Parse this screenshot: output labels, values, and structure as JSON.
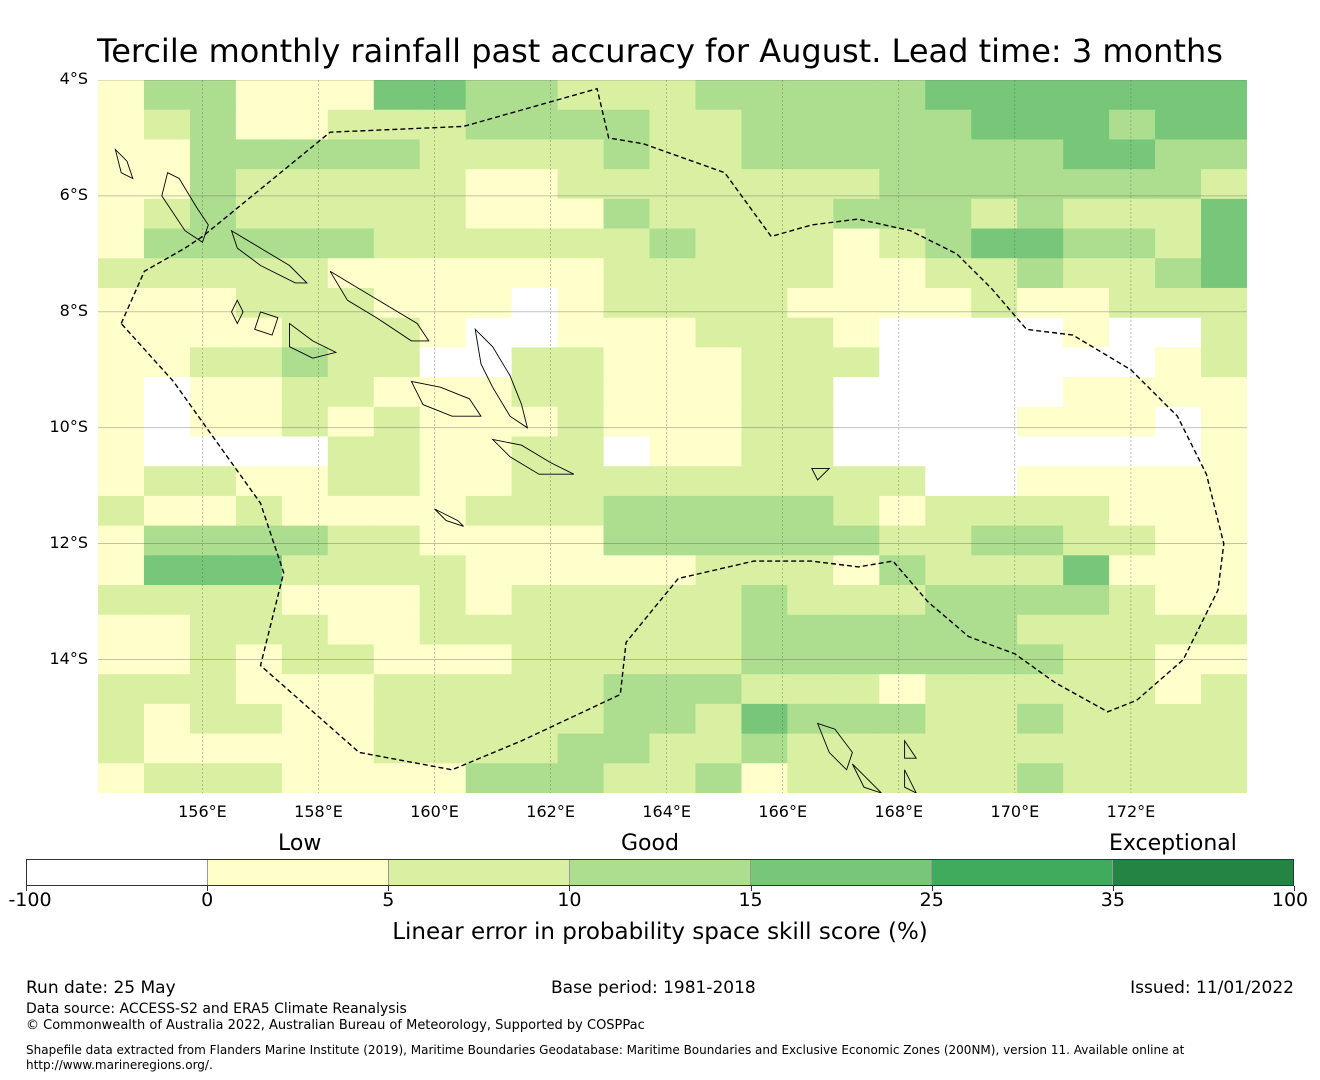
{
  "title": "Tercile monthly rainfall past accuracy for August. Lead time: 3 months",
  "map": {
    "lon_range": [
      154.2,
      174.0
    ],
    "lat_range": [
      -16.3,
      -4.0
    ],
    "grid_res_deg": 0.83,
    "lat_labels": [
      "4°S",
      "6°S",
      "8°S",
      "10°S",
      "12°S",
      "14°S"
    ],
    "lat_values": [
      -4,
      -6,
      -8,
      -10,
      -12,
      -14
    ],
    "lon_labels": [
      "156°E",
      "158°E",
      "160°E",
      "162°E",
      "164°E",
      "166°E",
      "168°E",
      "170°E",
      "172°E"
    ],
    "lon_values": [
      156,
      158,
      160,
      162,
      164,
      166,
      168,
      170,
      172
    ],
    "class_colors": [
      "#ffffff",
      "#ffffcc",
      "#d9f0a3",
      "#addd8e",
      "#78c679",
      "#41ab5d",
      "#238443"
    ],
    "skill_class_grid": [
      "1331114433222333334444444",
      "1231122233332233333444344",
      "1133333222232233333334433",
      "1132222211222222233333332",
      "1232222211132222333232224",
      "1333332222223222123443324",
      "2222211111122222112232234",
      "1112221110122221111211222",
      "1111222100111222100001002",
      "1122322002211122200000012",
      "1011221112211122000001111",
      "1011212111211122000011101",
      "1000022112201122000000001",
      "1221122112222222220011111",
      "2112111122233333212222111",
      "1333322111133333322332211",
      "1444222211111222132224111",
      "2222111212222232223333211",
      "1122211222222233333322222",
      "1121221112222233333332211",
      "2221112222233322212222212",
      "2122112222233243332232222",
      "2111112222332232222222222",
      "1222111133322312222232222"
    ],
    "eez_boundary": [
      [
        154.6,
        -8.2
      ],
      [
        155.0,
        -7.3
      ],
      [
        155.7,
        -6.9
      ],
      [
        156.0,
        -6.7
      ],
      [
        158.2,
        -4.9
      ],
      [
        160.5,
        -4.8
      ],
      [
        162.8,
        -4.15
      ],
      [
        163.0,
        -5.0
      ],
      [
        163.6,
        -5.1
      ],
      [
        165.0,
        -5.6
      ],
      [
        165.8,
        -6.7
      ],
      [
        166.5,
        -6.5
      ],
      [
        167.3,
        -6.4
      ],
      [
        168.2,
        -6.6
      ],
      [
        169.0,
        -7.0
      ],
      [
        169.6,
        -7.6
      ],
      [
        170.2,
        -8.3
      ],
      [
        171.0,
        -8.4
      ],
      [
        172.0,
        -9.0
      ],
      [
        172.8,
        -9.8
      ],
      [
        173.3,
        -10.8
      ],
      [
        173.6,
        -12.0
      ],
      [
        173.5,
        -12.8
      ],
      [
        172.9,
        -14.0
      ],
      [
        172.1,
        -14.7
      ],
      [
        171.6,
        -14.9
      ],
      [
        170.7,
        -14.4
      ],
      [
        170.0,
        -13.9
      ],
      [
        169.2,
        -13.6
      ],
      [
        168.5,
        -13.0
      ],
      [
        167.9,
        -12.3
      ],
      [
        167.3,
        -12.4
      ],
      [
        166.5,
        -12.3
      ],
      [
        165.5,
        -12.3
      ],
      [
        164.2,
        -12.6
      ],
      [
        163.3,
        -13.7
      ],
      [
        163.2,
        -14.6
      ],
      [
        161.5,
        -15.4
      ],
      [
        160.3,
        -15.9
      ],
      [
        158.7,
        -15.6
      ],
      [
        157.0,
        -14.1
      ],
      [
        157.4,
        -12.5
      ],
      [
        157.0,
        -11.3
      ],
      [
        155.5,
        -9.2
      ],
      [
        154.6,
        -8.2
      ]
    ],
    "islands": [
      [
        [
          155.4,
          -5.6
        ],
        [
          155.6,
          -5.7
        ],
        [
          155.9,
          -6.2
        ],
        [
          156.1,
          -6.5
        ],
        [
          156.0,
          -6.8
        ],
        [
          155.7,
          -6.6
        ],
        [
          155.5,
          -6.3
        ],
        [
          155.3,
          -6.0
        ],
        [
          155.4,
          -5.6
        ]
      ],
      [
        [
          154.5,
          -5.2
        ],
        [
          154.7,
          -5.4
        ],
        [
          154.8,
          -5.7
        ],
        [
          154.6,
          -5.6
        ],
        [
          154.5,
          -5.2
        ]
      ],
      [
        [
          156.5,
          -6.6
        ],
        [
          157.0,
          -6.9
        ],
        [
          157.5,
          -7.2
        ],
        [
          157.8,
          -7.5
        ],
        [
          157.6,
          -7.5
        ],
        [
          157.0,
          -7.2
        ],
        [
          156.6,
          -6.9
        ],
        [
          156.5,
          -6.6
        ]
      ],
      [
        [
          158.2,
          -7.3
        ],
        [
          158.7,
          -7.6
        ],
        [
          159.2,
          -7.9
        ],
        [
          159.7,
          -8.2
        ],
        [
          159.9,
          -8.5
        ],
        [
          159.6,
          -8.5
        ],
        [
          159.0,
          -8.1
        ],
        [
          158.5,
          -7.8
        ],
        [
          158.2,
          -7.3
        ]
      ],
      [
        [
          156.6,
          -7.8
        ],
        [
          156.7,
          -8.0
        ],
        [
          156.6,
          -8.2
        ],
        [
          156.5,
          -8.0
        ],
        [
          156.6,
          -7.8
        ]
      ],
      [
        [
          157.0,
          -8.0
        ],
        [
          157.3,
          -8.1
        ],
        [
          157.2,
          -8.4
        ],
        [
          156.9,
          -8.3
        ],
        [
          157.0,
          -8.0
        ]
      ],
      [
        [
          157.5,
          -8.2
        ],
        [
          157.9,
          -8.5
        ],
        [
          158.3,
          -8.7
        ],
        [
          157.9,
          -8.8
        ],
        [
          157.5,
          -8.6
        ],
        [
          157.5,
          -8.2
        ]
      ],
      [
        [
          160.7,
          -8.3
        ],
        [
          161.0,
          -8.6
        ],
        [
          161.3,
          -9.1
        ],
        [
          161.5,
          -9.6
        ],
        [
          161.6,
          -10.0
        ],
        [
          161.3,
          -9.8
        ],
        [
          161.0,
          -9.3
        ],
        [
          160.8,
          -8.9
        ],
        [
          160.7,
          -8.3
        ]
      ],
      [
        [
          159.6,
          -9.2
        ],
        [
          160.1,
          -9.3
        ],
        [
          160.6,
          -9.5
        ],
        [
          160.8,
          -9.8
        ],
        [
          160.3,
          -9.8
        ],
        [
          159.8,
          -9.6
        ],
        [
          159.6,
          -9.2
        ]
      ],
      [
        [
          161.0,
          -10.2
        ],
        [
          161.5,
          -10.3
        ],
        [
          162.0,
          -10.6
        ],
        [
          162.4,
          -10.8
        ],
        [
          161.8,
          -10.8
        ],
        [
          161.3,
          -10.5
        ],
        [
          161.0,
          -10.2
        ]
      ],
      [
        [
          160.0,
          -11.4
        ],
        [
          160.4,
          -11.6
        ],
        [
          160.5,
          -11.7
        ],
        [
          160.2,
          -11.6
        ],
        [
          160.0,
          -11.4
        ]
      ],
      [
        [
          166.6,
          -15.1
        ],
        [
          166.9,
          -15.2
        ],
        [
          167.2,
          -15.6
        ],
        [
          167.1,
          -15.9
        ],
        [
          166.8,
          -15.6
        ],
        [
          166.6,
          -15.1
        ]
      ],
      [
        [
          167.2,
          -15.8
        ],
        [
          167.4,
          -16.0
        ],
        [
          167.7,
          -16.3
        ],
        [
          167.4,
          -16.2
        ],
        [
          167.2,
          -15.8
        ]
      ],
      [
        [
          168.1,
          -15.4
        ],
        [
          168.3,
          -15.7
        ],
        [
          168.1,
          -15.7
        ],
        [
          168.1,
          -15.4
        ]
      ],
      [
        [
          168.1,
          -15.9
        ],
        [
          168.3,
          -16.3
        ],
        [
          168.1,
          -16.2
        ],
        [
          168.1,
          -15.9
        ]
      ],
      [
        [
          166.5,
          -10.7
        ],
        [
          166.8,
          -10.7
        ],
        [
          166.6,
          -10.9
        ],
        [
          166.5,
          -10.7
        ]
      ]
    ]
  },
  "legend": {
    "categories": [
      "Low",
      "Good",
      "Exceptional"
    ],
    "colors": [
      "#ffffff",
      "#ffffcc",
      "#d9f0a3",
      "#addd8e",
      "#78c679",
      "#41ab5d",
      "#238443"
    ],
    "ticks": [
      "-100",
      "0",
      "5",
      "10",
      "15",
      "25",
      "35",
      "100"
    ],
    "label": "Linear error in probability space skill score (%)"
  },
  "footer": {
    "run_date": "Run date: 25 May",
    "base_period": "Base period: 1981-2018",
    "issued": "Issued: 11/01/2022",
    "data_source": "Data source: ACCESS-S2 and ERA5 Climate Reanalysis",
    "copyright": "© Commonwealth of Australia 2022, Australian Bureau of Meteorology, Supported by COSPPac",
    "shapefile_line1": "Shapefile data extracted from Flanders Marine Institute (2019), Maritime Boundaries Geodatabase: Maritime Boundaries and Exclusive Economic Zones (200NM), version 11. Available online at",
    "shapefile_line2": "http://www.marineregions.org/."
  }
}
